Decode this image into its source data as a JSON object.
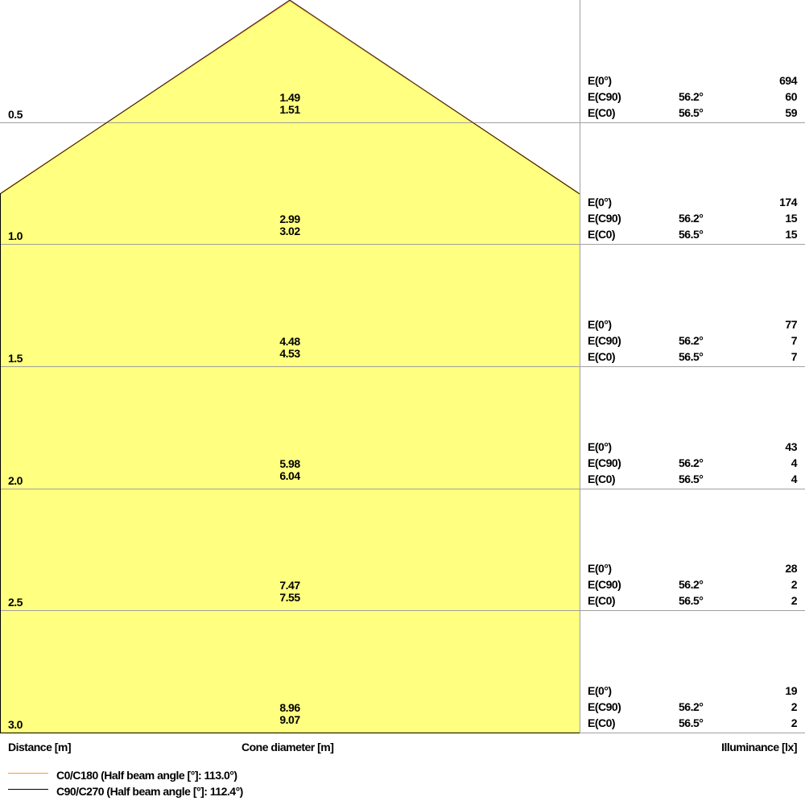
{
  "chart_data": {
    "type": "cone-diagram",
    "distance_label": "Distance [m]",
    "diameter_label": "Cone diameter [m]",
    "illuminance_label": "Illuminance [lx]",
    "colors": {
      "fill": "#FFFF80",
      "c0": "#F0A030",
      "c90": "#000000",
      "grid": "#A0A0A0"
    },
    "legend": [
      {
        "label": "C0/C180 (Half beam angle [°]: 113.0°)",
        "color": "#F0A030"
      },
      {
        "label": "C90/C270 (Half beam angle [°]: 112.4°)",
        "color": "#000000"
      }
    ],
    "rows": [
      {
        "distance": "0.5",
        "d1": "1.49",
        "d2": "1.51",
        "e0": "694",
        "ec90": "60",
        "ec0": "59"
      },
      {
        "distance": "1.0",
        "d1": "2.99",
        "d2": "3.02",
        "e0": "174",
        "ec90": "15",
        "ec0": "15"
      },
      {
        "distance": "1.5",
        "d1": "4.48",
        "d2": "4.53",
        "e0": "77",
        "ec90": "7",
        "ec0": "7"
      },
      {
        "distance": "2.0",
        "d1": "5.98",
        "d2": "6.04",
        "e0": "43",
        "ec90": "4",
        "ec0": "4"
      },
      {
        "distance": "2.5",
        "d1": "7.47",
        "d2": "7.55",
        "e0": "28",
        "ec90": "2",
        "ec0": "2"
      },
      {
        "distance": "3.0",
        "d1": "8.96",
        "d2": "9.07",
        "e0": "19",
        "ec90": "2",
        "ec0": "2"
      }
    ],
    "labels": {
      "e0": "E(0°)",
      "ec90": "E(C90)",
      "ec0": "E(C0)",
      "angle_c90": "56.2°",
      "angle_c0": "56.5°"
    }
  }
}
